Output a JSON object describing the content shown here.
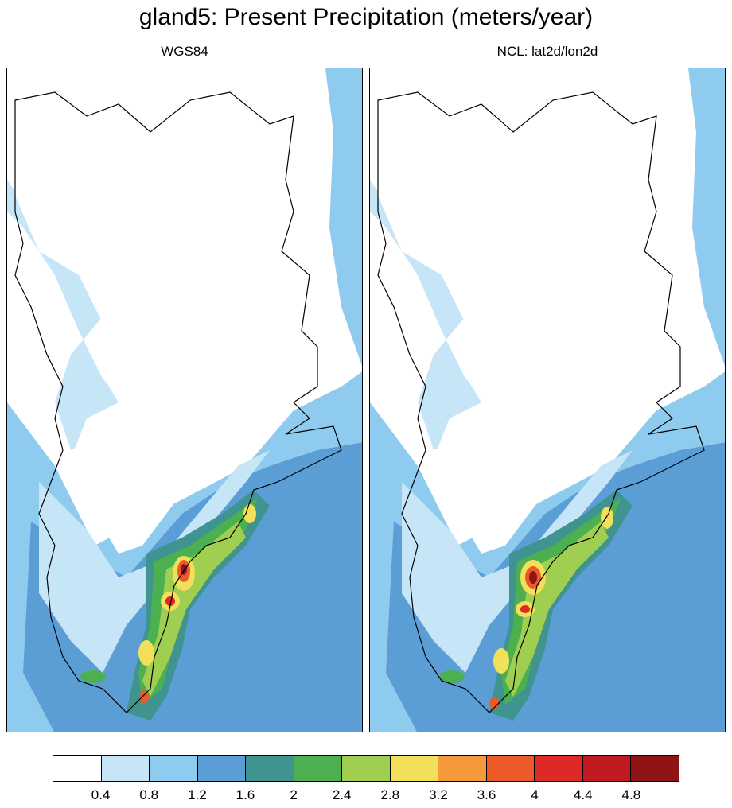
{
  "title": "gland5: Present Precipitation (meters/year)",
  "panels": [
    {
      "subtitle": "WGS84"
    },
    {
      "subtitle": "NCL: lat2d/lon2d"
    }
  ],
  "colorbar": {
    "colors": [
      "#ffffff",
      "#c6e6f7",
      "#8ecbee",
      "#5b9ed6",
      "#3f9490",
      "#4db050",
      "#a0ce50",
      "#f3e05a",
      "#f59a3c",
      "#ec5a2a",
      "#dd2a26",
      "#c01a20",
      "#8f1416"
    ],
    "labels": [
      "0.4",
      "0.8",
      "1.2",
      "1.6",
      "2",
      "2.4",
      "2.8",
      "3.2",
      "3.6",
      "4",
      "4.4",
      "4.8"
    ]
  }
}
